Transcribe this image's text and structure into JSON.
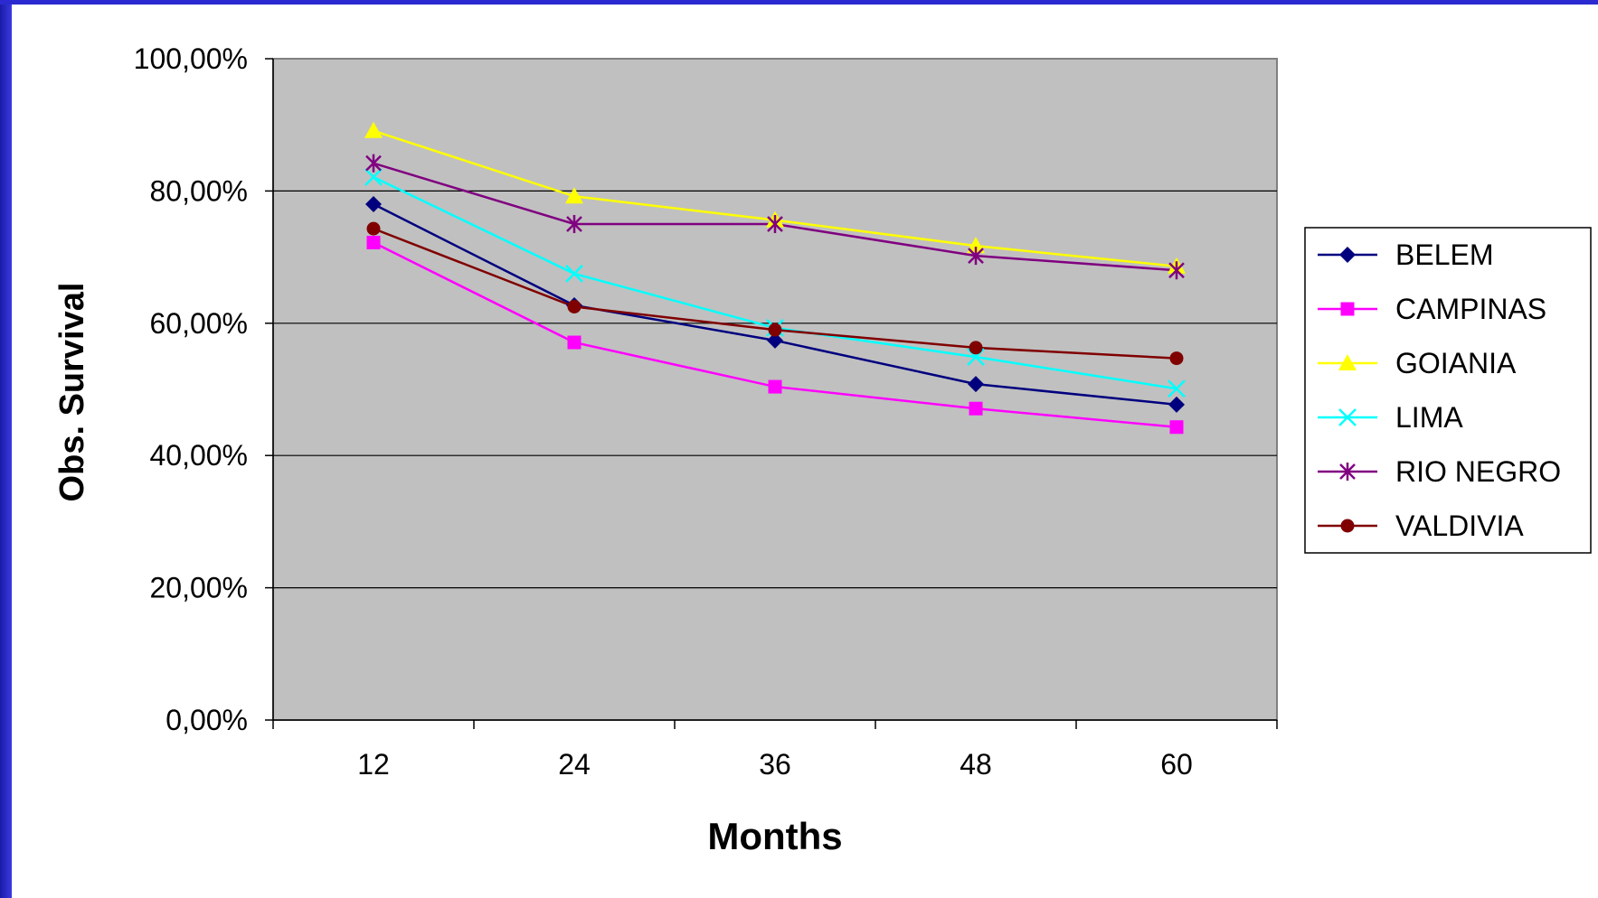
{
  "chart_data": {
    "type": "line",
    "xlabel": "Months",
    "ylabel": "Obs. Survival",
    "ylim": [
      0,
      100
    ],
    "yticks": [
      0,
      20,
      40,
      60,
      80,
      100
    ],
    "ytick_labels": [
      "0,00%",
      "20,00%",
      "40,00%",
      "60,00%",
      "80,00%",
      "100,00%"
    ],
    "categories": [
      "12",
      "24",
      "36",
      "48",
      "60"
    ],
    "grid": true,
    "legend_position": "right",
    "plot_background": "#c0c0c0",
    "series": [
      {
        "name": "BELEM",
        "color": "#00007f",
        "marker": "diamond",
        "values": [
          78.0,
          62.7,
          57.4,
          50.8,
          47.7
        ]
      },
      {
        "name": "CAMPINAS",
        "color": "#ff00ff",
        "marker": "square",
        "values": [
          72.2,
          57.1,
          50.4,
          47.1,
          44.3
        ]
      },
      {
        "name": "GOIANIA",
        "color": "#ffff00",
        "marker": "triangle",
        "values": [
          89.1,
          79.2,
          75.6,
          71.7,
          68.6
        ]
      },
      {
        "name": "LIMA",
        "color": "#00ffff",
        "marker": "x",
        "values": [
          82.1,
          67.5,
          59.3,
          54.9,
          50.1
        ]
      },
      {
        "name": "RIO NEGRO",
        "color": "#800080",
        "marker": "star",
        "values": [
          84.2,
          75.0,
          75.0,
          70.2,
          68.0
        ]
      },
      {
        "name": "VALDIVIA",
        "color": "#800000",
        "marker": "circle",
        "values": [
          74.3,
          62.5,
          59.0,
          56.3,
          54.7
        ]
      }
    ]
  }
}
